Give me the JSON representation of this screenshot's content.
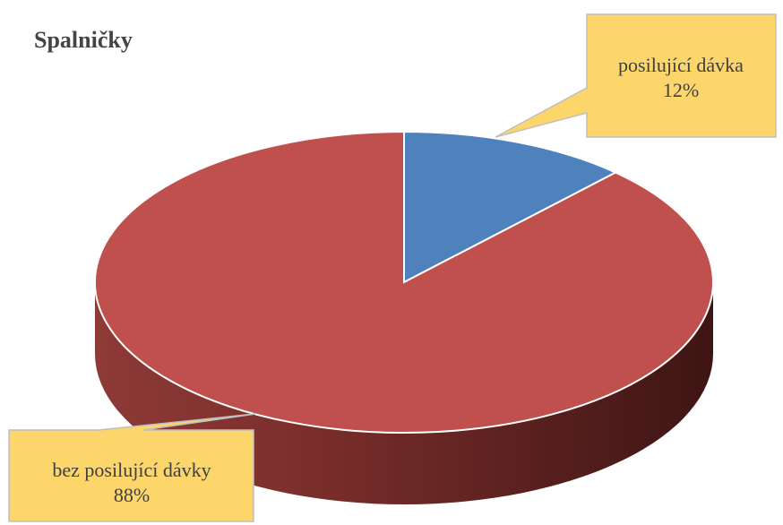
{
  "chart_data": {
    "type": "pie",
    "title": "Spalničky",
    "categories": [
      "posilující dávka",
      "bez posilující dávky"
    ],
    "values": [
      12,
      88
    ],
    "value_labels": [
      "12%",
      "88%"
    ],
    "colors": [
      "#4F81BD",
      "#C0504D"
    ],
    "style": "3d",
    "legend": "none"
  },
  "callout_color": "#FCD56B"
}
